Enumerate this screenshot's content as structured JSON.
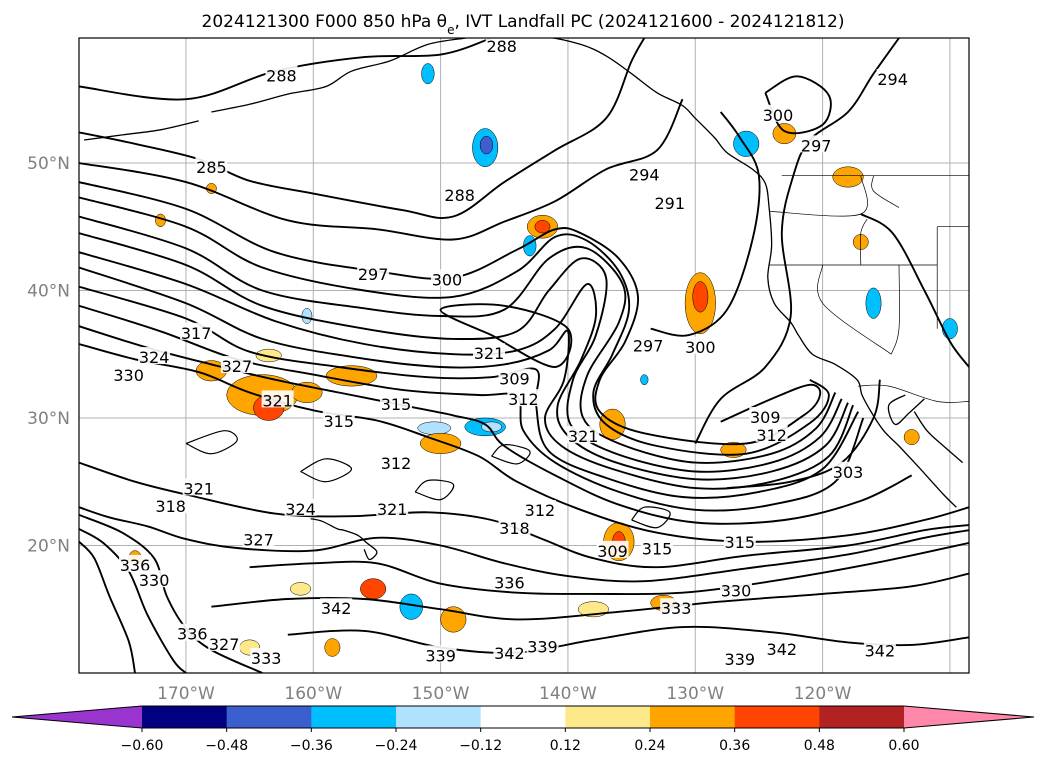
{
  "title": "2024121300 F000 850 hPa θe, IVT Landfall PC (2024121600 - 2024121812)",
  "map": {
    "lat_ticks": [
      "50°N",
      "40°N",
      "30°N",
      "20°N"
    ],
    "lon_ticks": [
      "170°W",
      "160°W",
      "150°W",
      "140°W",
      "130°W",
      "120°W"
    ],
    "gridlines": true,
    "contour_labels": [
      {
        "text": "288",
        "lon": -162.5,
        "lat": 56.8
      },
      {
        "text": "288",
        "lon": -145.2,
        "lat": 59.1
      },
      {
        "text": "285",
        "lon": -168.0,
        "lat": 49.6
      },
      {
        "text": "288",
        "lon": -148.5,
        "lat": 47.4
      },
      {
        "text": "294",
        "lon": -134.0,
        "lat": 49.0
      },
      {
        "text": "291",
        "lon": -132.0,
        "lat": 46.8
      },
      {
        "text": "300",
        "lon": -123.5,
        "lat": 53.7
      },
      {
        "text": "297",
        "lon": -120.5,
        "lat": 51.3
      },
      {
        "text": "294",
        "lon": -114.5,
        "lat": 56.5
      },
      {
        "text": "297",
        "lon": -155.3,
        "lat": 41.2
      },
      {
        "text": "300",
        "lon": -149.5,
        "lat": 40.8
      },
      {
        "text": "317",
        "lon": -169.2,
        "lat": 36.6
      },
      {
        "text": "324",
        "lon": -172.5,
        "lat": 34.7
      },
      {
        "text": "330",
        "lon": -174.5,
        "lat": 33.3
      },
      {
        "text": "327",
        "lon": -166.0,
        "lat": 34.0
      },
      {
        "text": "321",
        "lon": -162.8,
        "lat": 31.3
      },
      {
        "text": "315",
        "lon": -158.0,
        "lat": 29.7
      },
      {
        "text": "315",
        "lon": -153.5,
        "lat": 31.0
      },
      {
        "text": "321",
        "lon": -146.2,
        "lat": 35.0
      },
      {
        "text": "309",
        "lon": -144.2,
        "lat": 33.0
      },
      {
        "text": "312",
        "lon": -143.5,
        "lat": 31.4
      },
      {
        "text": "297",
        "lon": -133.7,
        "lat": 35.6
      },
      {
        "text": "300",
        "lon": -129.6,
        "lat": 35.5
      },
      {
        "text": "321",
        "lon": -138.8,
        "lat": 28.5
      },
      {
        "text": "312",
        "lon": -153.5,
        "lat": 26.4
      },
      {
        "text": "309",
        "lon": -124.5,
        "lat": 30.0
      },
      {
        "text": "312",
        "lon": -124.0,
        "lat": 28.6
      },
      {
        "text": "303",
        "lon": -118.0,
        "lat": 25.7
      },
      {
        "text": "321",
        "lon": -169.0,
        "lat": 24.4
      },
      {
        "text": "318",
        "lon": -171.2,
        "lat": 23.0
      },
      {
        "text": "324",
        "lon": -161.0,
        "lat": 22.8
      },
      {
        "text": "321",
        "lon": -153.8,
        "lat": 22.8
      },
      {
        "text": "312",
        "lon": -142.2,
        "lat": 22.7
      },
      {
        "text": "318",
        "lon": -144.2,
        "lat": 21.3
      },
      {
        "text": "309",
        "lon": -136.5,
        "lat": 19.5
      },
      {
        "text": "315",
        "lon": -133.0,
        "lat": 19.7
      },
      {
        "text": "315",
        "lon": -126.5,
        "lat": 20.2
      },
      {
        "text": "327",
        "lon": -164.3,
        "lat": 20.4
      },
      {
        "text": "336",
        "lon": -174.0,
        "lat": 18.4
      },
      {
        "text": "330",
        "lon": -172.5,
        "lat": 17.2
      },
      {
        "text": "336",
        "lon": -144.6,
        "lat": 17.0
      },
      {
        "text": "330",
        "lon": -126.8,
        "lat": 16.4
      },
      {
        "text": "333",
        "lon": -131.5,
        "lat": 15.0
      },
      {
        "text": "342",
        "lon": -158.2,
        "lat": 15.0
      },
      {
        "text": "336",
        "lon": -169.5,
        "lat": 13.0
      },
      {
        "text": "327",
        "lon": -167.0,
        "lat": 12.2
      },
      {
        "text": "333",
        "lon": -163.7,
        "lat": 11.1
      },
      {
        "text": "339",
        "lon": -150.0,
        "lat": 11.3
      },
      {
        "text": "339",
        "lon": -142.0,
        "lat": 12.0
      },
      {
        "text": "342",
        "lon": -144.6,
        "lat": 11.5
      },
      {
        "text": "339",
        "lon": -126.5,
        "lat": 11.0
      },
      {
        "text": "342",
        "lon": -123.2,
        "lat": 11.8
      },
      {
        "text": "342",
        "lon": -115.5,
        "lat": 11.7
      }
    ]
  },
  "colorbar": {
    "colors": [
      "#9a34cf",
      "#000080",
      "#3c5fd0",
      "#00bfff",
      "#b0e2ff",
      "#ffffff",
      "#fde98a",
      "#ffa500",
      "#ff4500",
      "#b22222",
      "#ff88aa"
    ],
    "labels": [
      "−0.60",
      "−0.48",
      "−0.36",
      "−0.24",
      "−0.12",
      "0.12",
      "0.24",
      "0.36",
      "0.48",
      "0.60"
    ]
  }
}
